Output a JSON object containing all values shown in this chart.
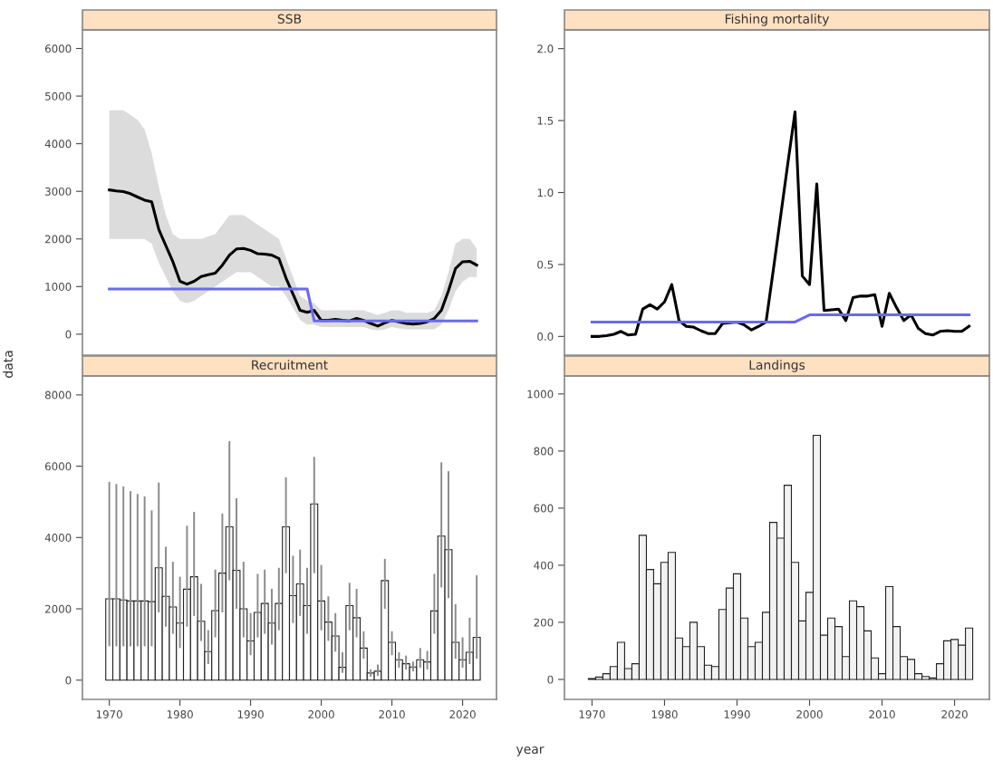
{
  "chart_data": [
    {
      "type": "line",
      "title": "SSB",
      "ylabel": "data",
      "tick_labels": "y",
      "xlim": [
        1966.2,
        2024.8
      ],
      "ylim": [
        -440,
        6390
      ],
      "yticks": [
        0,
        1000,
        2000,
        3000,
        4000,
        5000,
        6000
      ],
      "x": [
        1970,
        1971,
        1972,
        1973,
        1974,
        1975,
        1976,
        1977,
        1978,
        1979,
        1980,
        1981,
        1982,
        1983,
        1984,
        1985,
        1986,
        1987,
        1988,
        1989,
        1990,
        1991,
        1992,
        1993,
        1994,
        1995,
        1996,
        1997,
        1998,
        1999,
        2000,
        2001,
        2002,
        2003,
        2004,
        2005,
        2006,
        2007,
        2008,
        2009,
        2010,
        2011,
        2012,
        2013,
        2014,
        2015,
        2016,
        2017,
        2018,
        2019,
        2020,
        2021,
        2022
      ],
      "series": [
        {
          "color": "#000000",
          "values": [
            3030,
            3010,
            2995,
            2950,
            2880,
            2815,
            2780,
            2200,
            1860,
            1520,
            1110,
            1050,
            1110,
            1210,
            1250,
            1280,
            1450,
            1660,
            1790,
            1800,
            1760,
            1690,
            1680,
            1660,
            1590,
            1180,
            840,
            500,
            460,
            500,
            290,
            290,
            310,
            290,
            280,
            330,
            290,
            225,
            170,
            240,
            290,
            260,
            225,
            210,
            225,
            260,
            330,
            500,
            910,
            1380,
            1520,
            1530,
            1450
          ],
          "lower": [
            2000,
            2000,
            2000,
            2000,
            2000,
            2000,
            1900,
            1500,
            1200,
            900,
            700,
            650,
            700,
            800,
            900,
            1000,
            1100,
            1200,
            1300,
            1300,
            1300,
            1200,
            1100,
            1000,
            1000,
            800,
            550,
            300,
            200,
            200,
            150,
            150,
            150,
            150,
            150,
            150,
            150,
            100,
            80,
            100,
            150,
            120,
            100,
            100,
            100,
            100,
            100,
            200,
            500,
            900,
            1100,
            1200,
            1200
          ],
          "upper": [
            4700,
            4700,
            4700,
            4600,
            4500,
            4300,
            3800,
            3100,
            2500,
            2100,
            2000,
            2000,
            2000,
            2000,
            2050,
            2100,
            2300,
            2500,
            2500,
            2500,
            2400,
            2300,
            2200,
            2100,
            2000,
            1600,
            1200,
            800,
            700,
            650,
            500,
            500,
            500,
            500,
            500,
            500,
            500,
            450,
            400,
            450,
            500,
            500,
            450,
            450,
            450,
            450,
            500,
            800,
            1300,
            1900,
            2000,
            2000,
            1800
          ]
        },
        {
          "color": "#6a6aee",
          "x": [
            1970,
            1998,
            1999,
            2022
          ],
          "values": [
            950,
            950,
            280,
            280
          ]
        }
      ]
    },
    {
      "type": "line",
      "title": "Fishing mortality",
      "tick_labels": "y",
      "xlim": [
        1966.2,
        2024.8
      ],
      "ylim": [
        -0.13,
        2.13
      ],
      "yticks": [
        {
          "value": 0,
          "label": "0.0"
        },
        0.5,
        {
          "value": 1,
          "label": "1.0"
        },
        1.5,
        {
          "value": 2,
          "label": "2.0"
        }
      ],
      "x": [
        1970,
        1971,
        1972,
        1973,
        1974,
        1975,
        1976,
        1977,
        1978,
        1979,
        1980,
        1981,
        1982,
        1983,
        1984,
        1985,
        1986,
        1987,
        1988,
        1989,
        1990,
        1991,
        1992,
        1993,
        1994,
        1995,
        1996,
        1997,
        1998,
        1999,
        2000,
        2001,
        2002,
        2003,
        2004,
        2005,
        2006,
        2007,
        2008,
        2009,
        2010,
        2011,
        2012,
        2013,
        2014,
        2015,
        2016,
        2017,
        2018,
        2019,
        2020,
        2021,
        2022
      ],
      "series": [
        {
          "color": "#000000",
          "values": [
            0.0,
            0.0,
            0.005,
            0.015,
            0.035,
            0.01,
            0.015,
            0.19,
            0.22,
            0.19,
            0.24,
            0.36,
            0.11,
            0.07,
            0.065,
            0.04,
            0.02,
            0.02,
            0.09,
            0.095,
            0.1,
            0.08,
            0.045,
            0.07,
            0.1,
            0.46,
            0.83,
            1.2,
            1.56,
            0.42,
            0.36,
            1.06,
            0.18,
            0.185,
            0.19,
            0.11,
            0.27,
            0.28,
            0.28,
            0.29,
            0.07,
            0.3,
            0.2,
            0.11,
            0.15,
            0.055,
            0.02,
            0.01,
            0.035,
            0.04,
            0.035,
            0.035,
            0.07
          ]
        },
        {
          "color": "#6a6aee",
          "x": [
            1970,
            1998,
            2000,
            2022
          ],
          "values": [
            0.1,
            0.1,
            0.15,
            0.15
          ]
        }
      ]
    },
    {
      "type": "bar",
      "title": "Recruitment",
      "xlabel": "year",
      "xlim": [
        1966.2,
        2024.8
      ],
      "ylim": [
        -540,
        8530
      ],
      "yticks": [
        0,
        2000,
        4000,
        6000,
        8000
      ],
      "xticks": [
        1970,
        1980,
        1990,
        2000,
        2010,
        2020
      ],
      "x": [
        1970,
        1971,
        1972,
        1973,
        1974,
        1975,
        1976,
        1977,
        1978,
        1979,
        1980,
        1981,
        1982,
        1983,
        1984,
        1985,
        1986,
        1987,
        1988,
        1989,
        1990,
        1991,
        1992,
        1993,
        1994,
        1995,
        1996,
        1997,
        1998,
        1999,
        2000,
        2001,
        2002,
        2003,
        2004,
        2005,
        2006,
        2007,
        2008,
        2009,
        2010,
        2011,
        2012,
        2013,
        2014,
        2015,
        2016,
        2017,
        2018,
        2019,
        2020,
        2021,
        2022
      ],
      "series": [
        {
          "color": "#ffffff",
          "values": [
            2280,
            2280,
            2250,
            2220,
            2220,
            2220,
            2200,
            3150,
            2350,
            2050,
            1600,
            2550,
            2900,
            1650,
            800,
            1950,
            3000,
            4300,
            3080,
            2000,
            1100,
            1900,
            2150,
            1600,
            2150,
            4300,
            2370,
            2700,
            2090,
            4940,
            2220,
            1630,
            1240,
            360,
            2090,
            1750,
            900,
            200,
            250,
            2790,
            1060,
            570,
            460,
            370,
            570,
            510,
            1940,
            4040,
            3660,
            1060,
            570,
            780,
            1200
          ],
          "errors": [
            [
              950,
              5560
            ],
            [
              950,
              5500
            ],
            [
              950,
              5430
            ],
            [
              950,
              5300
            ],
            [
              950,
              5220
            ],
            [
              950,
              5150
            ],
            [
              950,
              4760
            ],
            [
              1900,
              5540
            ],
            [
              1500,
              3740
            ],
            [
              1300,
              3320
            ],
            [
              900,
              2900
            ],
            [
              1500,
              4330
            ],
            [
              1800,
              4720
            ],
            [
              1100,
              2700
            ],
            [
              450,
              1400
            ],
            [
              1200,
              3100
            ],
            [
              1900,
              4670
            ],
            [
              2800,
              6700
            ],
            [
              2000,
              5100
            ],
            [
              1200,
              3320
            ],
            [
              700,
              1880
            ],
            [
              1200,
              2980
            ],
            [
              1300,
              3100
            ],
            [
              1000,
              2560
            ],
            [
              1400,
              3150
            ],
            [
              3000,
              5690
            ],
            [
              1600,
              3490
            ],
            [
              1800,
              3660
            ],
            [
              1300,
              3150
            ],
            [
              3000,
              6260
            ],
            [
              1400,
              3230
            ],
            [
              1100,
              2350
            ],
            [
              800,
              1880
            ],
            [
              200,
              780
            ],
            [
              1400,
              2730
            ],
            [
              1200,
              2560
            ],
            [
              600,
              1370
            ],
            [
              100,
              300
            ],
            [
              120,
              440
            ],
            [
              2000,
              3400
            ],
            [
              700,
              1370
            ],
            [
              350,
              780
            ],
            [
              300,
              690
            ],
            [
              250,
              520
            ],
            [
              350,
              900
            ],
            [
              300,
              820
            ],
            [
              1300,
              2980
            ],
            [
              2600,
              6110
            ],
            [
              2300,
              5860
            ],
            [
              600,
              2130
            ],
            [
              350,
              1200
            ],
            [
              450,
              1750
            ],
            [
              600,
              2940
            ]
          ]
        }
      ]
    },
    {
      "type": "bar",
      "title": "Landings",
      "xlim": [
        1966.2,
        2024.8
      ],
      "ylim": [
        -70,
        1063
      ],
      "yticks": [
        0,
        200,
        400,
        600,
        800,
        1000
      ],
      "xticks": [
        1970,
        1980,
        1990,
        2000,
        2010,
        2020
      ],
      "x": [
        1970,
        1971,
        1972,
        1973,
        1974,
        1975,
        1976,
        1977,
        1978,
        1979,
        1980,
        1981,
        1982,
        1983,
        1984,
        1985,
        1986,
        1987,
        1988,
        1989,
        1990,
        1991,
        1992,
        1993,
        1994,
        1995,
        1996,
        1997,
        1998,
        1999,
        2000,
        2001,
        2002,
        2003,
        2004,
        2005,
        2006,
        2007,
        2008,
        2009,
        2010,
        2011,
        2012,
        2013,
        2014,
        2015,
        2016,
        2017,
        2018,
        2019,
        2020,
        2021,
        2022
      ],
      "series": [
        {
          "color": "#f2f2f2",
          "values": [
            3,
            8,
            20,
            45,
            130,
            38,
            55,
            505,
            385,
            335,
            410,
            445,
            145,
            115,
            200,
            115,
            50,
            45,
            245,
            320,
            370,
            215,
            115,
            130,
            235,
            550,
            495,
            680,
            410,
            205,
            305,
            855,
            155,
            215,
            185,
            80,
            275,
            255,
            170,
            75,
            20,
            325,
            185,
            80,
            70,
            20,
            10,
            5,
            55,
            135,
            140,
            120,
            180
          ]
        }
      ]
    }
  ]
}
